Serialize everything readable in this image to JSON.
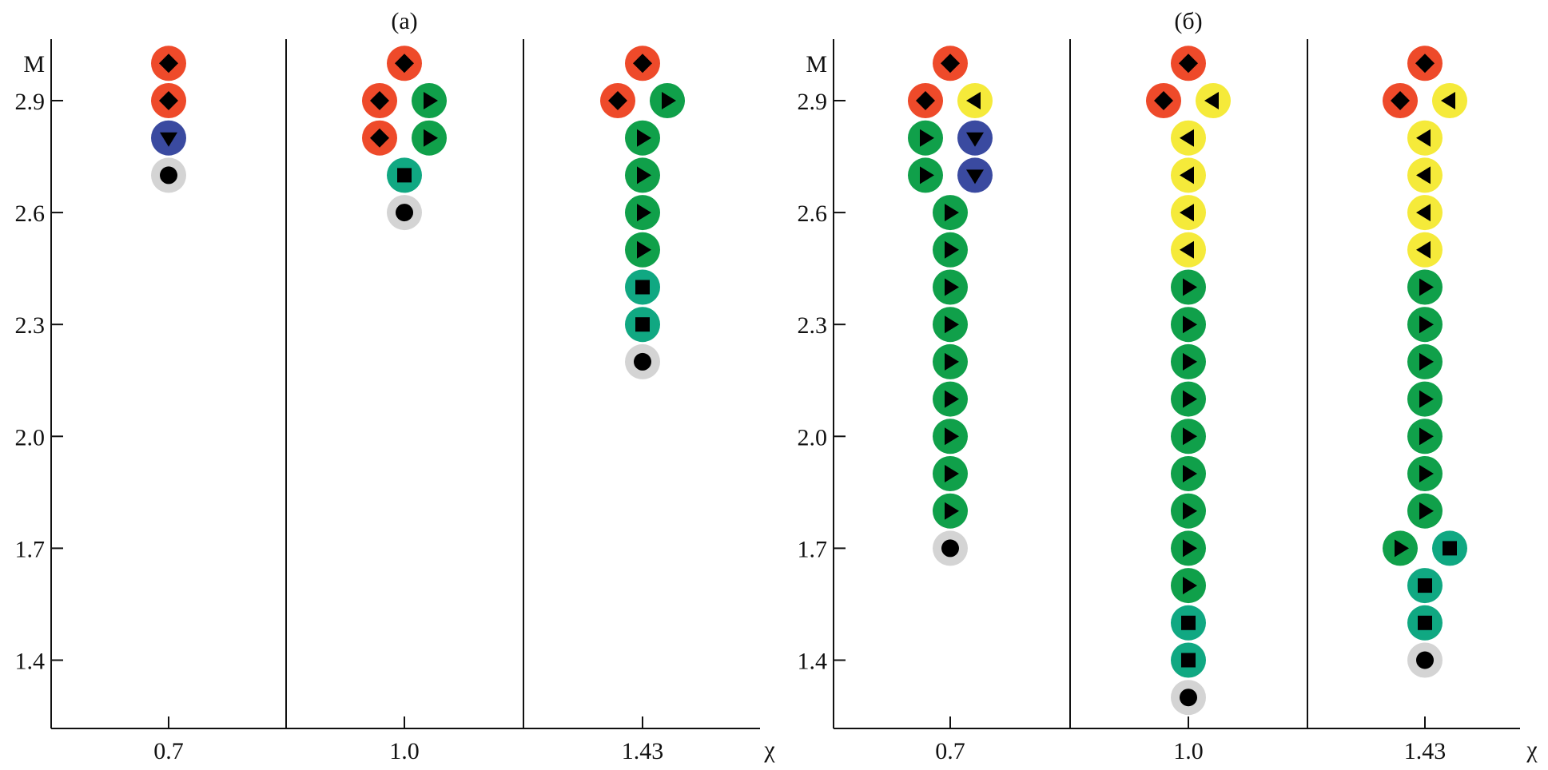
{
  "chart_data": [
    {
      "type": "scatter",
      "title": "(a)",
      "xlabel": "χ",
      "ylabel": "M",
      "x_categories": [
        "0.7",
        "1.0",
        "1.43"
      ],
      "y_ticks": [
        "2.9",
        "2.6",
        "2.3",
        "2.0",
        "1.7",
        "1.4"
      ],
      "ylim": [
        1.3,
        3.0
      ],
      "points": [
        {
          "x": "0.7",
          "M": 3.0,
          "marker": [
            "red-diamond"
          ]
        },
        {
          "x": "0.7",
          "M": 2.9,
          "marker": [
            "red-diamond"
          ]
        },
        {
          "x": "0.7",
          "M": 2.8,
          "marker": [
            "blue-down-triangle"
          ]
        },
        {
          "x": "0.7",
          "M": 2.7,
          "marker": [
            "gray-circle"
          ]
        },
        {
          "x": "1.0",
          "M": 3.0,
          "marker": [
            "red-diamond"
          ]
        },
        {
          "x": "1.0",
          "M": 2.9,
          "marker": [
            "red-diamond",
            "green-right-triangle"
          ]
        },
        {
          "x": "1.0",
          "M": 2.8,
          "marker": [
            "red-diamond",
            "green-right-triangle"
          ]
        },
        {
          "x": "1.0",
          "M": 2.7,
          "marker": [
            "teal-square"
          ]
        },
        {
          "x": "1.0",
          "M": 2.6,
          "marker": [
            "gray-circle"
          ]
        },
        {
          "x": "1.43",
          "M": 3.0,
          "marker": [
            "red-diamond"
          ]
        },
        {
          "x": "1.43",
          "M": 2.9,
          "marker": [
            "red-diamond",
            "green-right-triangle"
          ]
        },
        {
          "x": "1.43",
          "M": 2.8,
          "marker": [
            "green-right-triangle"
          ]
        },
        {
          "x": "1.43",
          "M": 2.7,
          "marker": [
            "green-right-triangle"
          ]
        },
        {
          "x": "1.43",
          "M": 2.6,
          "marker": [
            "green-right-triangle"
          ]
        },
        {
          "x": "1.43",
          "M": 2.5,
          "marker": [
            "green-right-triangle"
          ]
        },
        {
          "x": "1.43",
          "M": 2.4,
          "marker": [
            "teal-square"
          ]
        },
        {
          "x": "1.43",
          "M": 2.3,
          "marker": [
            "teal-square"
          ]
        },
        {
          "x": "1.43",
          "M": 2.2,
          "marker": [
            "gray-circle"
          ]
        }
      ]
    },
    {
      "type": "scatter",
      "title": "(б)",
      "xlabel": "χ",
      "ylabel": "M",
      "x_categories": [
        "0.7",
        "1.0",
        "1.43"
      ],
      "y_ticks": [
        "2.9",
        "2.6",
        "2.3",
        "2.0",
        "1.7",
        "1.4"
      ],
      "ylim": [
        1.3,
        3.0
      ],
      "points": [
        {
          "x": "0.7",
          "M": 3.0,
          "marker": [
            "red-diamond"
          ]
        },
        {
          "x": "0.7",
          "M": 2.9,
          "marker": [
            "red-diamond",
            "yellow-left-triangle"
          ]
        },
        {
          "x": "0.7",
          "M": 2.8,
          "marker": [
            "green-right-triangle",
            "blue-down-triangle"
          ]
        },
        {
          "x": "0.7",
          "M": 2.7,
          "marker": [
            "green-right-triangle",
            "blue-down-triangle"
          ]
        },
        {
          "x": "0.7",
          "M": 2.6,
          "marker": [
            "green-right-triangle"
          ]
        },
        {
          "x": "0.7",
          "M": 2.5,
          "marker": [
            "green-right-triangle"
          ]
        },
        {
          "x": "0.7",
          "M": 2.4,
          "marker": [
            "green-right-triangle"
          ]
        },
        {
          "x": "0.7",
          "M": 2.3,
          "marker": [
            "green-right-triangle"
          ]
        },
        {
          "x": "0.7",
          "M": 2.2,
          "marker": [
            "green-right-triangle"
          ]
        },
        {
          "x": "0.7",
          "M": 2.1,
          "marker": [
            "green-right-triangle"
          ]
        },
        {
          "x": "0.7",
          "M": 2.0,
          "marker": [
            "green-right-triangle"
          ]
        },
        {
          "x": "0.7",
          "M": 1.9,
          "marker": [
            "green-right-triangle"
          ]
        },
        {
          "x": "0.7",
          "M": 1.8,
          "marker": [
            "green-right-triangle"
          ]
        },
        {
          "x": "0.7",
          "M": 1.7,
          "marker": [
            "gray-circle"
          ]
        },
        {
          "x": "1.0",
          "M": 3.0,
          "marker": [
            "red-diamond"
          ]
        },
        {
          "x": "1.0",
          "M": 2.9,
          "marker": [
            "red-diamond",
            "yellow-left-triangle"
          ]
        },
        {
          "x": "1.0",
          "M": 2.8,
          "marker": [
            "yellow-left-triangle"
          ]
        },
        {
          "x": "1.0",
          "M": 2.7,
          "marker": [
            "yellow-left-triangle"
          ]
        },
        {
          "x": "1.0",
          "M": 2.6,
          "marker": [
            "yellow-left-triangle"
          ]
        },
        {
          "x": "1.0",
          "M": 2.5,
          "marker": [
            "yellow-left-triangle"
          ]
        },
        {
          "x": "1.0",
          "M": 2.4,
          "marker": [
            "green-right-triangle"
          ]
        },
        {
          "x": "1.0",
          "M": 2.3,
          "marker": [
            "green-right-triangle"
          ]
        },
        {
          "x": "1.0",
          "M": 2.2,
          "marker": [
            "green-right-triangle"
          ]
        },
        {
          "x": "1.0",
          "M": 2.1,
          "marker": [
            "green-right-triangle"
          ]
        },
        {
          "x": "1.0",
          "M": 2.0,
          "marker": [
            "green-right-triangle"
          ]
        },
        {
          "x": "1.0",
          "M": 1.9,
          "marker": [
            "green-right-triangle"
          ]
        },
        {
          "x": "1.0",
          "M": 1.8,
          "marker": [
            "green-right-triangle"
          ]
        },
        {
          "x": "1.0",
          "M": 1.7,
          "marker": [
            "green-right-triangle"
          ]
        },
        {
          "x": "1.0",
          "M": 1.6,
          "marker": [
            "green-right-triangle"
          ]
        },
        {
          "x": "1.0",
          "M": 1.5,
          "marker": [
            "teal-square"
          ]
        },
        {
          "x": "1.0",
          "M": 1.4,
          "marker": [
            "teal-square"
          ]
        },
        {
          "x": "1.0",
          "M": 1.3,
          "marker": [
            "gray-circle"
          ]
        },
        {
          "x": "1.43",
          "M": 3.0,
          "marker": [
            "red-diamond"
          ]
        },
        {
          "x": "1.43",
          "M": 2.9,
          "marker": [
            "red-diamond",
            "yellow-left-triangle"
          ]
        },
        {
          "x": "1.43",
          "M": 2.8,
          "marker": [
            "yellow-left-triangle"
          ]
        },
        {
          "x": "1.43",
          "M": 2.7,
          "marker": [
            "yellow-left-triangle"
          ]
        },
        {
          "x": "1.43",
          "M": 2.6,
          "marker": [
            "yellow-left-triangle"
          ]
        },
        {
          "x": "1.43",
          "M": 2.5,
          "marker": [
            "yellow-left-triangle"
          ]
        },
        {
          "x": "1.43",
          "M": 2.4,
          "marker": [
            "green-right-triangle"
          ]
        },
        {
          "x": "1.43",
          "M": 2.3,
          "marker": [
            "green-right-triangle"
          ]
        },
        {
          "x": "1.43",
          "M": 2.2,
          "marker": [
            "green-right-triangle"
          ]
        },
        {
          "x": "1.43",
          "M": 2.1,
          "marker": [
            "green-right-triangle"
          ]
        },
        {
          "x": "1.43",
          "M": 2.0,
          "marker": [
            "green-right-triangle"
          ]
        },
        {
          "x": "1.43",
          "M": 1.9,
          "marker": [
            "green-right-triangle"
          ]
        },
        {
          "x": "1.43",
          "M": 1.8,
          "marker": [
            "green-right-triangle"
          ]
        },
        {
          "x": "1.43",
          "M": 1.7,
          "marker": [
            "green-right-triangle",
            "teal-square"
          ]
        },
        {
          "x": "1.43",
          "M": 1.6,
          "marker": [
            "teal-square"
          ]
        },
        {
          "x": "1.43",
          "M": 1.5,
          "marker": [
            "teal-square"
          ]
        },
        {
          "x": "1.43",
          "M": 1.4,
          "marker": [
            "gray-circle"
          ]
        }
      ]
    }
  ],
  "colors": {
    "red": "#ee4a2a",
    "green": "#10a04a",
    "blue": "#3a4aa0",
    "teal": "#10a882",
    "gray": "#d4d4d4",
    "yellow": "#f5ea3a"
  }
}
